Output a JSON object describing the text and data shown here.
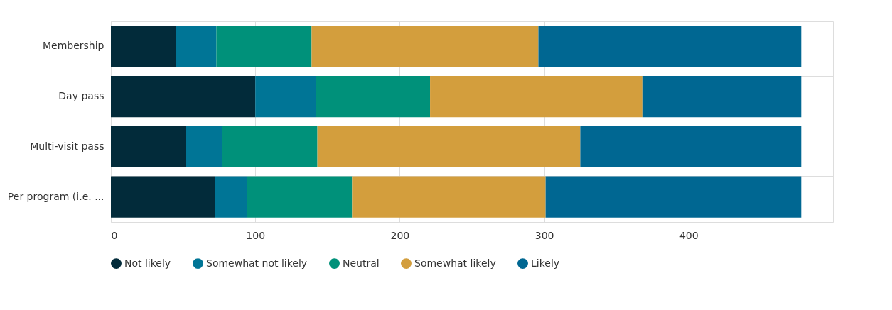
{
  "chart_data": {
    "type": "bar",
    "orientation": "horizontal",
    "stacked": true,
    "categories": [
      "Membership",
      "Day pass",
      "Multi-visit pass",
      "Per program (i.e. ..."
    ],
    "series": [
      {
        "name": "Not likely",
        "color": "#022b3a",
        "values": [
          45,
          100,
          52,
          72
        ]
      },
      {
        "name": "Somewhat not likely",
        "color": "#007596",
        "values": [
          28,
          42,
          25,
          22
        ]
      },
      {
        "name": "Neutral",
        "color": "#00917a",
        "values": [
          66,
          79,
          66,
          73
        ]
      },
      {
        "name": "Somewhat likely",
        "color": "#d39e3d",
        "values": [
          157,
          147,
          182,
          134
        ]
      },
      {
        "name": "Likely",
        "color": "#006792",
        "values": [
          182,
          110,
          153,
          177
        ]
      }
    ],
    "xlim": [
      0,
      500
    ],
    "xticks": [
      0,
      100,
      200,
      300,
      400
    ],
    "grid": true,
    "legend": "bottom"
  }
}
